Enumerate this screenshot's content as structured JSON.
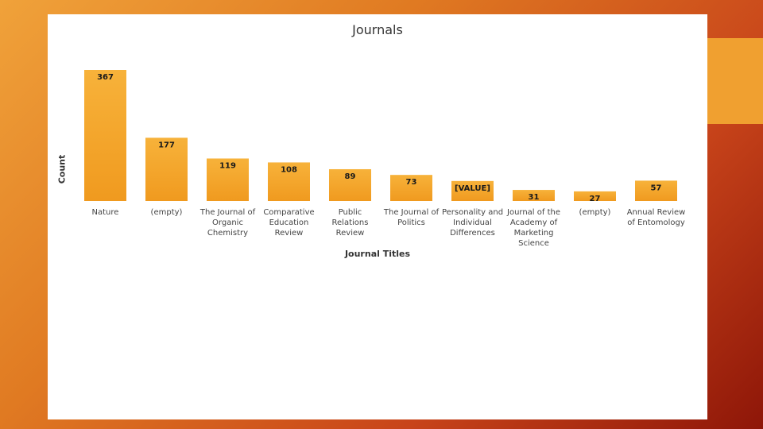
{
  "chart_data": {
    "type": "bar",
    "title": "Journals",
    "xlabel": "Journal Titles",
    "ylabel": "Count",
    "categories": [
      "Nature",
      "(empty)",
      "The Journal of Organic Chemistry",
      "Comparative Education Review",
      "Public Relations Review",
      "The Journal of Politics",
      "Personality and Individual Differences",
      "Journal of the Academy of Marketing Science",
      "(empty)",
      "Annual Review of Entomology"
    ],
    "category_lines": [
      [
        "Nature"
      ],
      [
        "(empty)"
      ],
      [
        "The Journal of",
        "Organic",
        "Chemistry"
      ],
      [
        "Comparative",
        "Education",
        "Review"
      ],
      [
        "Public",
        "Relations",
        "Review"
      ],
      [
        "The Journal of",
        "Politics"
      ],
      [
        "Personality and",
        "Individual",
        "Differences"
      ],
      [
        "Journal of the",
        "Academy of",
        "Marketing",
        "Science"
      ],
      [
        "(empty)"
      ],
      [
        "Annual Review",
        "of Entomology"
      ]
    ],
    "values": [
      367,
      177,
      119,
      108,
      89,
      73,
      56,
      31,
      27,
      57
    ],
    "data_labels": [
      "367",
      "177",
      "119",
      "108",
      "89",
      "73",
      "[VALUE]",
      "31",
      "27",
      "57"
    ],
    "ylim": [
      0,
      367
    ],
    "grid": false,
    "legend": "none",
    "bar_color": "#f09a1f",
    "bar_color_light": "#f7b23a"
  }
}
